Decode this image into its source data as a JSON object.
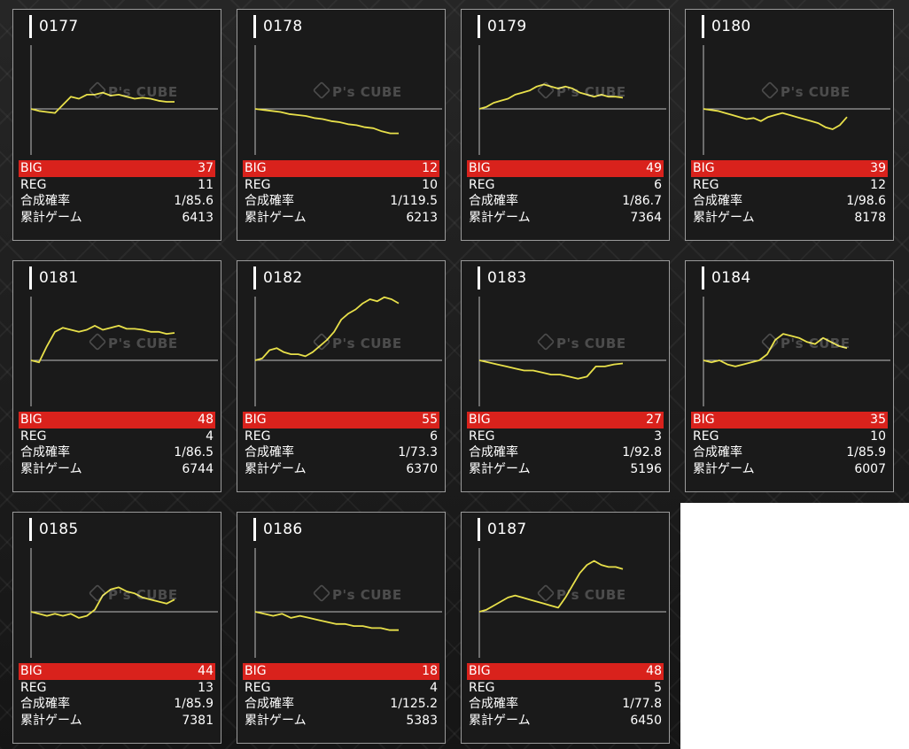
{
  "labels": {
    "big": "BIG",
    "reg": "REG",
    "rate": "合成確率",
    "games": "累計ゲーム"
  },
  "watermark": "P's CUBE",
  "colors": {
    "line": "#e8e04a",
    "big_bar": "#d9221c",
    "baseline": "#bdbdbd"
  },
  "machines": [
    {
      "id": "0177",
      "big": "37",
      "reg": "11",
      "rate": "1/85.6",
      "games": "6413",
      "trend": [
        0,
        -2,
        -3,
        -4,
        4,
        12,
        10,
        14,
        14,
        16,
        13,
        14,
        12,
        10,
        11,
        10,
        8,
        7,
        7
      ]
    },
    {
      "id": "0178",
      "big": "12",
      "reg": "10",
      "rate": "1/119.5",
      "games": "6213",
      "trend": [
        0,
        -1,
        -2,
        -3,
        -5,
        -6,
        -7,
        -9,
        -10,
        -12,
        -13,
        -15,
        -16,
        -18,
        -19,
        -22,
        -24,
        -24
      ]
    },
    {
      "id": "0179",
      "big": "49",
      "reg": "6",
      "rate": "1/86.7",
      "games": "7364",
      "trend": [
        0,
        2,
        6,
        8,
        10,
        14,
        16,
        18,
        22,
        24,
        22,
        20,
        22,
        20,
        16,
        14,
        12,
        14,
        12,
        12,
        11
      ]
    },
    {
      "id": "0180",
      "big": "39",
      "reg": "12",
      "rate": "1/98.6",
      "games": "8178",
      "trend": [
        0,
        -1,
        -2,
        -4,
        -6,
        -8,
        -10,
        -9,
        -12,
        -8,
        -6,
        -4,
        -6,
        -8,
        -10,
        -12,
        -14,
        -18,
        -20,
        -16,
        -8
      ]
    },
    {
      "id": "0181",
      "big": "48",
      "reg": "4",
      "rate": "1/86.5",
      "games": "6744",
      "trend": [
        0,
        -2,
        14,
        28,
        32,
        30,
        28,
        30,
        34,
        30,
        32,
        34,
        31,
        31,
        30,
        28,
        28,
        26,
        27
      ]
    },
    {
      "id": "0182",
      "big": "55",
      "reg": "6",
      "rate": "1/73.3",
      "games": "6370",
      "trend": [
        0,
        2,
        10,
        12,
        8,
        6,
        6,
        4,
        8,
        14,
        20,
        28,
        40,
        46,
        50,
        56,
        60,
        58,
        62,
        60,
        56
      ]
    },
    {
      "id": "0183",
      "big": "27",
      "reg": "3",
      "rate": "1/92.8",
      "games": "5196",
      "trend": [
        0,
        -2,
        -4,
        -6,
        -8,
        -10,
        -10,
        -12,
        -14,
        -14,
        -16,
        -18,
        -16,
        -6,
        -6,
        -4,
        -3
      ]
    },
    {
      "id": "0184",
      "big": "35",
      "reg": "10",
      "rate": "1/85.9",
      "games": "6007",
      "trend": [
        0,
        -2,
        0,
        -4,
        -6,
        -4,
        -2,
        0,
        6,
        20,
        26,
        24,
        22,
        18,
        16,
        22,
        18,
        14,
        12
      ]
    },
    {
      "id": "0185",
      "big": "44",
      "reg": "13",
      "rate": "1/85.9",
      "games": "7381",
      "trend": [
        0,
        -2,
        -4,
        -2,
        -4,
        -2,
        -6,
        -4,
        2,
        16,
        22,
        24,
        20,
        18,
        14,
        12,
        10,
        8,
        12
      ]
    },
    {
      "id": "0186",
      "big": "18",
      "reg": "4",
      "rate": "1/125.2",
      "games": "5383",
      "trend": [
        0,
        -2,
        -4,
        -2,
        -6,
        -4,
        -6,
        -8,
        -10,
        -12,
        -12,
        -14,
        -14,
        -16,
        -16,
        -18,
        -18
      ]
    },
    {
      "id": "0187",
      "big": "48",
      "reg": "5",
      "rate": "1/77.8",
      "games": "6450",
      "trend": [
        0,
        2,
        6,
        10,
        14,
        16,
        14,
        12,
        10,
        8,
        6,
        4,
        14,
        26,
        38,
        46,
        50,
        46,
        44,
        44,
        42
      ]
    }
  ]
}
